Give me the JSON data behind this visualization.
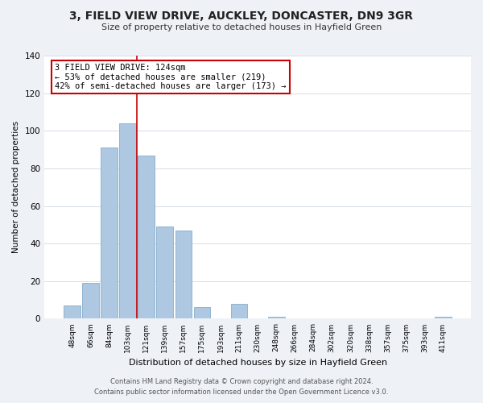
{
  "title": "3, FIELD VIEW DRIVE, AUCKLEY, DONCASTER, DN9 3GR",
  "subtitle": "Size of property relative to detached houses in Hayfield Green",
  "xlabel": "Distribution of detached houses by size in Hayfield Green",
  "ylabel": "Number of detached properties",
  "bin_labels": [
    "48sqm",
    "66sqm",
    "84sqm",
    "103sqm",
    "121sqm",
    "139sqm",
    "157sqm",
    "175sqm",
    "193sqm",
    "211sqm",
    "230sqm",
    "248sqm",
    "266sqm",
    "284sqm",
    "302sqm",
    "320sqm",
    "338sqm",
    "357sqm",
    "375sqm",
    "393sqm",
    "411sqm"
  ],
  "bar_values": [
    7,
    19,
    91,
    104,
    87,
    49,
    47,
    6,
    0,
    8,
    0,
    1,
    0,
    0,
    0,
    0,
    0,
    0,
    0,
    0,
    1
  ],
  "bar_color": "#adc8e0",
  "bar_edge_color": "#85aece",
  "property_line_color": "#cc0000",
  "annotation_text": "3 FIELD VIEW DRIVE: 124sqm\n← 53% of detached houses are smaller (219)\n42% of semi-detached houses are larger (173) →",
  "annotation_box_color": "#ffffff",
  "annotation_box_edge_color": "#cc0000",
  "ylim": [
    0,
    140
  ],
  "yticks": [
    0,
    20,
    40,
    60,
    80,
    100,
    120,
    140
  ],
  "footer_line1": "Contains HM Land Registry data © Crown copyright and database right 2024.",
  "footer_line2": "Contains public sector information licensed under the Open Government Licence v3.0.",
  "bg_color": "#eef2f7",
  "plot_bg_color": "#ffffff",
  "grid_color": "#d0d8e4"
}
